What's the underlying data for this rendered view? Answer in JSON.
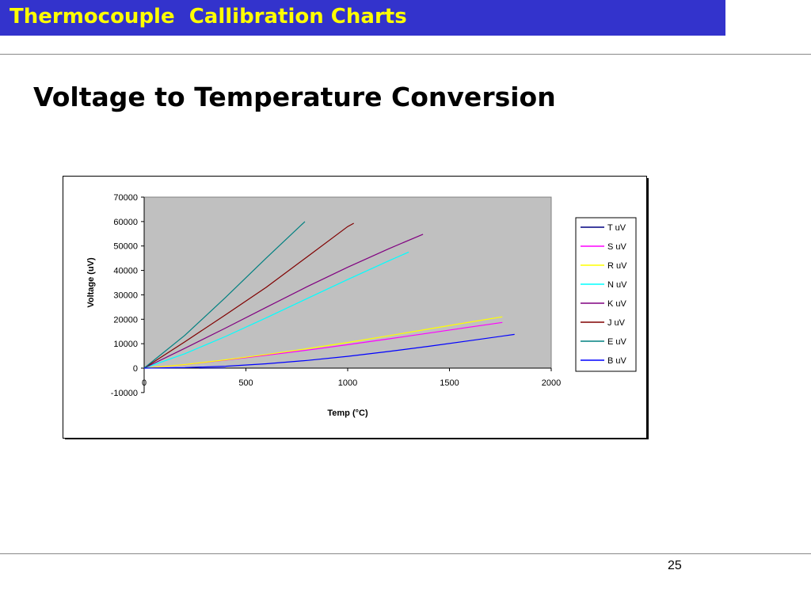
{
  "slide": {
    "header_title": "Thermocouple  Callibration Charts",
    "heading": "Voltage to Temperature Conversion",
    "page_number": "25"
  },
  "colors": {
    "header_bg": "#3333cc",
    "header_text": "#ffff00",
    "plot_bg": "#c0c0c0"
  },
  "chart_data": {
    "type": "line",
    "xlabel": "Temp (°C)",
    "ylabel": "Voltage (uV)",
    "xlim": [
      0,
      2000
    ],
    "ylim": [
      -10000,
      70000
    ],
    "x_ticks": [
      0,
      500,
      1000,
      1500,
      2000
    ],
    "y_ticks": [
      -10000,
      0,
      10000,
      20000,
      30000,
      40000,
      50000,
      60000,
      70000
    ],
    "grid": false,
    "legend_position": "right",
    "series": [
      {
        "name": "T uV",
        "color": "#000080",
        "x": [
          270,
          400
        ],
        "y": [
          0,
          20
        ]
      },
      {
        "name": "S uV",
        "color": "#ff00ff",
        "x": [
          0,
          200,
          400,
          600,
          800,
          1000,
          1200,
          1400,
          1600,
          1760
        ],
        "y": [
          0,
          1440,
          3260,
          5240,
          7350,
          9590,
          11950,
          14370,
          16780,
          18690
        ]
      },
      {
        "name": "R uV",
        "color": "#ffff00",
        "x": [
          0,
          200,
          400,
          600,
          800,
          1000,
          1200,
          1400,
          1600,
          1760
        ],
        "y": [
          0,
          1470,
          3410,
          5580,
          7950,
          10510,
          13230,
          16040,
          18840,
          21000
        ]
      },
      {
        "name": "N uV",
        "color": "#00ffff",
        "x": [
          0,
          200,
          400,
          600,
          800,
          1000,
          1200,
          1300
        ],
        "y": [
          0,
          5910,
          12970,
          20610,
          28450,
          36250,
          43850,
          47500
        ]
      },
      {
        "name": "K uV",
        "color": "#800080",
        "x": [
          0,
          200,
          400,
          600,
          800,
          1000,
          1200,
          1370
        ],
        "y": [
          0,
          8140,
          16400,
          24900,
          33300,
          41300,
          48800,
          54800
        ]
      },
      {
        "name": "J uV",
        "color": "#800000",
        "x": [
          0,
          200,
          400,
          600,
          800,
          1000,
          1030
        ],
        "y": [
          0,
          10780,
          21850,
          33100,
          45500,
          57950,
          59300
        ]
      },
      {
        "name": "E uV",
        "color": "#008080",
        "x": [
          0,
          200,
          400,
          600,
          790
        ],
        "y": [
          0,
          13420,
          28950,
          45090,
          60000
        ]
      },
      {
        "name": "B uV",
        "color": "#0000ff",
        "x": [
          0,
          200,
          400,
          600,
          800,
          1000,
          1200,
          1400,
          1600,
          1820
        ],
        "y": [
          0,
          180,
          790,
          1790,
          3150,
          4830,
          6790,
          8960,
          11260,
          13820
        ]
      }
    ]
  }
}
